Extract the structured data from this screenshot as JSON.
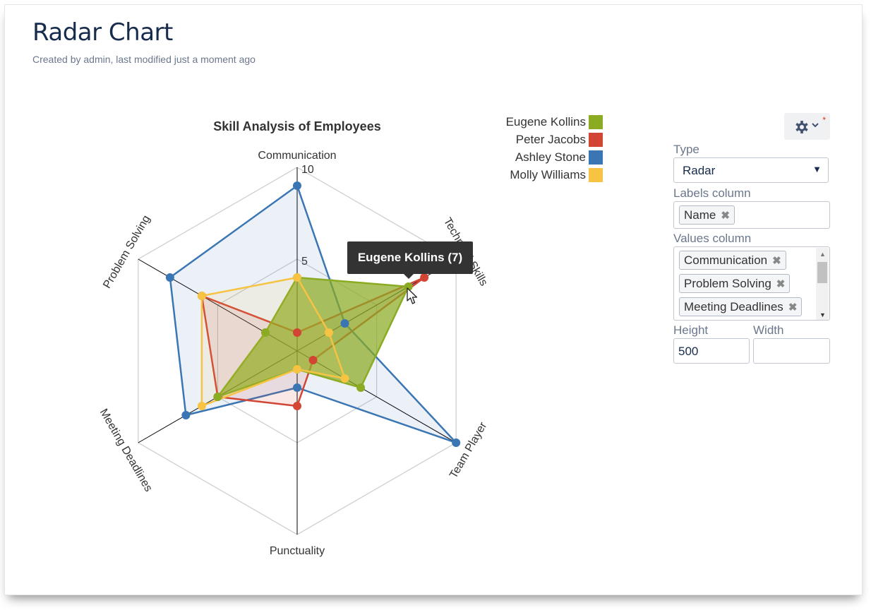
{
  "page": {
    "title": "Radar Chart",
    "byline": "Created by admin, last modified just a moment ago"
  },
  "chart_data": {
    "type": "radar",
    "title": "Skill Analysis of Employees",
    "axes": [
      "Communication",
      "Technical Skills",
      "Team Player",
      "Punctuality",
      "Meeting Deadlines",
      "Problem Solving"
    ],
    "range": [
      0,
      10
    ],
    "tick_labels": [
      "5",
      "10"
    ],
    "series": [
      {
        "name": "Eugene Kollins",
        "color": "#8aab22",
        "values": [
          4,
          7,
          4,
          1,
          5,
          2
        ]
      },
      {
        "name": "Peter Jacobs",
        "color": "#d24534",
        "values": [
          1,
          8,
          1,
          3,
          5,
          6
        ]
      },
      {
        "name": "Ashley Stone",
        "color": "#3b76b4",
        "values": [
          9,
          3,
          10,
          2,
          7,
          8
        ]
      },
      {
        "name": "Molly Williams",
        "color": "#f6c342",
        "values": [
          4,
          2,
          3,
          1,
          6,
          6
        ]
      }
    ],
    "legend_position": "top-right",
    "tooltip": "Eugene Kollins (7)"
  },
  "panel": {
    "type_label": "Type",
    "type_value": "Radar",
    "labels_column_label": "Labels column",
    "labels_tags": [
      "Name"
    ],
    "values_column_label": "Values column",
    "values_tags": [
      "Communication",
      "Problem Solving",
      "Meeting Deadlines"
    ],
    "height_label": "Height",
    "height_value": "500",
    "width_label": "Width",
    "width_value": "",
    "gear_icon": "gear-icon",
    "required_mark": "*"
  }
}
